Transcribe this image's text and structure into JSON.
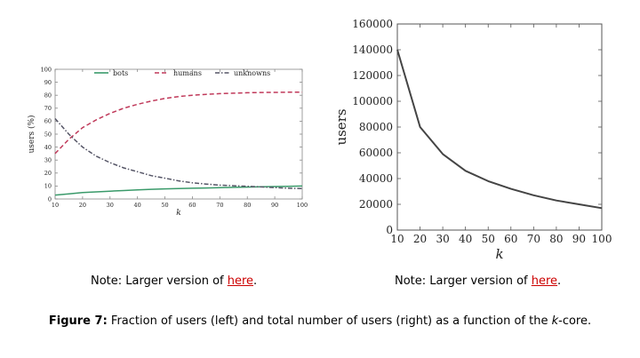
{
  "chart_data": [
    {
      "type": "line",
      "xlabel": "k",
      "ylabel": "users (%)",
      "xlim": [
        10,
        100
      ],
      "ylim": [
        0,
        100
      ],
      "xticks": [
        "10",
        "20",
        "30",
        "40",
        "50",
        "60",
        "70",
        "80",
        "90",
        "100"
      ],
      "yticks": [
        "0",
        "10",
        "20",
        "30",
        "40",
        "50",
        "60",
        "70",
        "80",
        "90",
        "100"
      ],
      "legend_position": "top",
      "x": [
        10,
        15,
        20,
        25,
        30,
        35,
        40,
        45,
        50,
        55,
        60,
        65,
        70,
        75,
        80,
        85,
        90,
        95,
        100
      ],
      "series": [
        {
          "name": "bots",
          "color": "#3a9a6a",
          "style": "solid",
          "values": [
            3,
            4,
            5,
            5.5,
            6,
            6.5,
            7,
            7.5,
            7.8,
            8,
            8.3,
            8.5,
            8.8,
            9,
            9.2,
            9.4,
            9.6,
            9.8,
            10
          ]
        },
        {
          "name": "humans",
          "color": "#c0395a",
          "style": "dashed",
          "values": [
            35,
            46,
            55,
            61,
            66,
            70,
            73,
            75.5,
            77.5,
            79,
            80,
            80.7,
            81.2,
            81.6,
            81.9,
            82.1,
            82.2,
            82.3,
            82.3
          ]
        },
        {
          "name": "unknowns",
          "color": "#555566",
          "style": "dashdot",
          "values": [
            62,
            50,
            40,
            33,
            28,
            24,
            21,
            18,
            16,
            14,
            12.5,
            11.5,
            10.7,
            10.2,
            9.8,
            9.3,
            8.8,
            8.3,
            8
          ]
        }
      ]
    },
    {
      "type": "line",
      "xlabel": "k",
      "ylabel": "users",
      "xlim": [
        10,
        100
      ],
      "ylim": [
        0,
        160000
      ],
      "xticks": [
        "10",
        "20",
        "30",
        "40",
        "50",
        "60",
        "70",
        "80",
        "90",
        "100"
      ],
      "yticks": [
        "0",
        "20000",
        "40000",
        "60000",
        "80000",
        "100000",
        "120000",
        "140000",
        "160000"
      ],
      "x": [
        10,
        20,
        30,
        40,
        50,
        60,
        70,
        80,
        90,
        100
      ],
      "series": [
        {
          "color": "#444444",
          "style": "solid",
          "values": [
            140000,
            80000,
            59000,
            46000,
            38000,
            32000,
            27000,
            23000,
            20000,
            17000
          ]
        }
      ]
    }
  ],
  "notes": {
    "left_prefix": "Note: Larger version of ",
    "left_link": "here",
    "left_suffix": ".",
    "right_prefix": "Note: Larger version of ",
    "right_link": "here",
    "right_suffix": "."
  },
  "caption": {
    "label": "Figure 7:",
    "text_a": " Fraction of users (left) and total number of users (right) as a function of the ",
    "k": "k",
    "text_b": "-core."
  }
}
